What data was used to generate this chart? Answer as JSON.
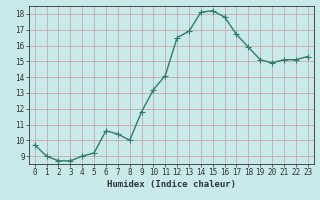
{
  "x": [
    0,
    1,
    2,
    3,
    4,
    5,
    6,
    7,
    8,
    9,
    10,
    11,
    12,
    13,
    14,
    15,
    16,
    17,
    18,
    19,
    20,
    21,
    22,
    23
  ],
  "y": [
    9.7,
    9.0,
    8.7,
    8.7,
    9.0,
    9.2,
    10.6,
    10.4,
    10.0,
    11.8,
    13.2,
    14.1,
    16.5,
    16.9,
    18.1,
    18.2,
    17.8,
    16.7,
    15.9,
    15.1,
    14.9,
    15.1,
    15.1,
    15.3
  ],
  "line_color": "#2e7d6e",
  "marker": "D",
  "marker_size": 2.0,
  "xlabel": "Humidex (Indice chaleur)",
  "xlim": [
    -0.5,
    23.5
  ],
  "ylim": [
    8.5,
    18.5
  ],
  "yticks": [
    9,
    10,
    11,
    12,
    13,
    14,
    15,
    16,
    17,
    18
  ],
  "xticks": [
    0,
    1,
    2,
    3,
    4,
    5,
    6,
    7,
    8,
    9,
    10,
    11,
    12,
    13,
    14,
    15,
    16,
    17,
    18,
    19,
    20,
    21,
    22,
    23
  ],
  "bg_color": "#c8eaea",
  "grid_color": "#c8a8a8",
  "tick_fontsize": 5.5,
  "xlabel_fontsize": 6.5,
  "line_width": 1.0
}
